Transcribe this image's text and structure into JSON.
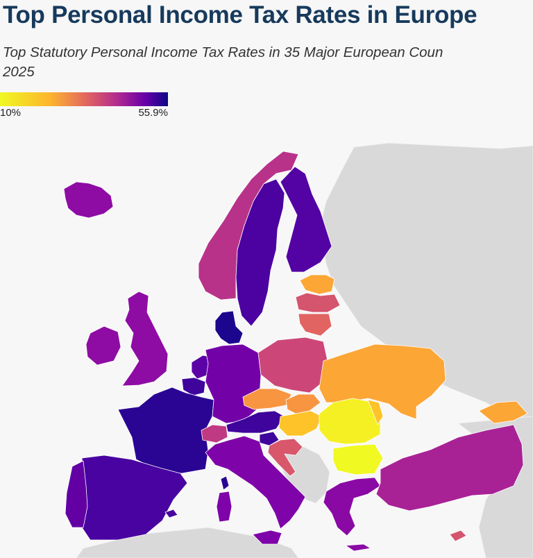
{
  "header": {
    "title": "Top Personal Income Tax Rates in Europe",
    "subtitle_line1": "Top Statutory Personal Income Tax Rates in 35 Major European Coun",
    "subtitle_line2": "2025"
  },
  "legend": {
    "min_label": "10%",
    "max_label": "55.9%",
    "min_value": 10,
    "max_value": 55.9,
    "colors": [
      "#f0f921",
      "#fdb42f",
      "#e16462",
      "#b12a90",
      "#6a00a8",
      "#0d0887"
    ]
  },
  "colors": {
    "background": "#f7f7f7",
    "non_data_land": "#d9d9d9",
    "title": "#173a5c"
  }
}
